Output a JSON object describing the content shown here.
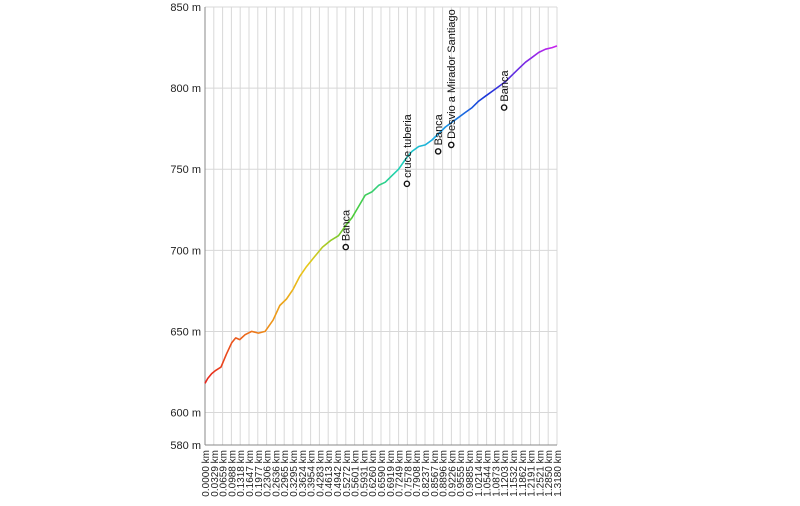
{
  "chart_data": {
    "type": "line",
    "title": "",
    "xlabel": "",
    "ylabel": "",
    "ylim": [
      580,
      850
    ],
    "y_unit": "m",
    "y_ticks": [
      580,
      600,
      650,
      700,
      750,
      800,
      850
    ],
    "y_tick_labels": [
      "580 m",
      "600 m",
      "650 m",
      "700 m",
      "750 m",
      "800 m",
      "850 m"
    ],
    "x_unit": "km",
    "x_range": [
      0,
      1.318
    ],
    "grid": true,
    "line_colors": "rainbow gradient along the line: red → orange → yellow → green → cyan → blue → violet",
    "x_tick_labels": [
      "0.0000 km",
      "0.0329 km",
      "0.0659 km",
      "0.0988 km",
      "0.1318 km",
      "0.1647 km",
      "0.1977 km",
      "0.2306 km",
      "0.2636 km",
      "0.2965 km",
      "0.3295 km",
      "0.3624 km",
      "0.3954 km",
      "0.4283 km",
      "0.4613 km",
      "0.4942 km",
      "0.5272 km",
      "0.5601 km",
      "0.5931 km",
      "0.6260 km",
      "0.6590 km",
      "0.6919 km",
      "0.7249 km",
      "0.7578 km",
      "0.7908 km",
      "0.8237 km",
      "0.8567 km",
      "0.8896 km",
      "0.9226 km",
      "0.9555 km",
      "0.9885 km",
      "1.0214 km",
      "1.0544 km",
      "1.0873 km",
      "1.1203 km",
      "1.1532 km",
      "1.1862 km",
      "1.2191 km",
      "1.2521 km",
      "1.2850 km",
      "1.3180 km"
    ],
    "series": [
      {
        "x": [
          0.0,
          0.01,
          0.025,
          0.04,
          0.06,
          0.08,
          0.1,
          0.115,
          0.13,
          0.15,
          0.175,
          0.2,
          0.225,
          0.255,
          0.28,
          0.305,
          0.33,
          0.355,
          0.38,
          0.41,
          0.44,
          0.47,
          0.5,
          0.53,
          0.55,
          0.575,
          0.6,
          0.625,
          0.65,
          0.675,
          0.7,
          0.725,
          0.75,
          0.775,
          0.8,
          0.825,
          0.85,
          0.875,
          0.9,
          0.925,
          0.95,
          0.975,
          1.0,
          1.025,
          1.05,
          1.075,
          1.1,
          1.125,
          1.15,
          1.175,
          1.2,
          1.225,
          1.25,
          1.275,
          1.3,
          1.318
        ],
        "y": [
          618,
          621,
          624,
          626,
          628,
          636,
          643,
          646,
          645,
          648,
          650,
          649,
          650,
          657,
          666,
          670,
          676,
          684,
          690,
          696,
          702,
          706,
          709,
          716,
          720,
          727,
          734,
          736,
          740,
          742,
          746,
          750,
          756,
          761,
          764,
          765,
          768,
          772,
          776,
          779,
          782,
          785,
          788,
          792,
          795,
          798,
          801,
          804,
          808,
          812,
          816,
          819,
          822,
          824,
          825,
          826
        ]
      }
    ],
    "annotations": [
      {
        "label": "Banca",
        "x": 0.527,
        "y": 702
      },
      {
        "label": "cruce tuberia",
        "x": 0.756,
        "y": 741
      },
      {
        "label": "Banca",
        "x": 0.873,
        "y": 761
      },
      {
        "label": "Desvio a Mirador Santiago",
        "x": 0.922,
        "y": 765
      },
      {
        "label": "Banca",
        "x": 1.12,
        "y": 788
      }
    ]
  }
}
